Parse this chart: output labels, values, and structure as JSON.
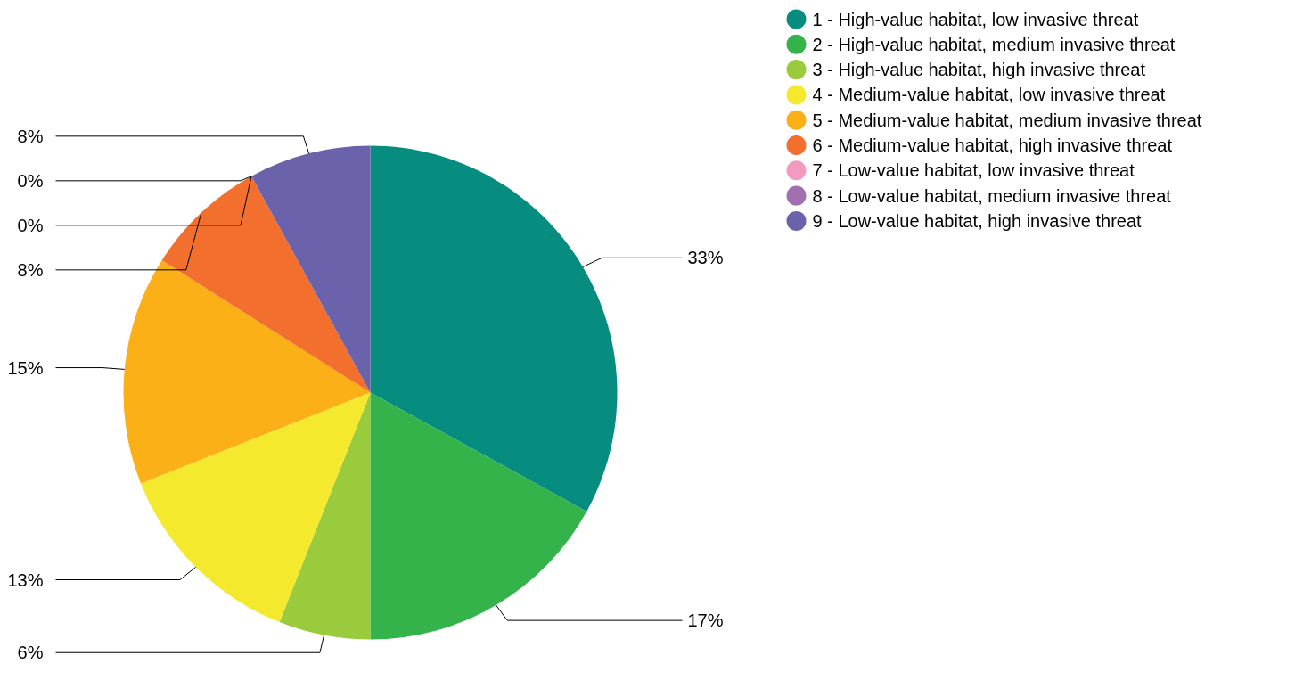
{
  "chart_data": {
    "type": "pie",
    "categories": [
      "1 - High-value habitat, low invasive threat",
      "2 - High-value habitat, medium invasive threat",
      "3 - High-value habitat, high invasive threat",
      "4 - Medium-value habitat, low invasive threat",
      "5 - Medium-value habitat, medium invasive threat",
      "6 - Medium-value habitat, high invasive threat",
      "7 - Low-value habitat, low invasive threat",
      "8 - Low-value habitat, medium invasive threat",
      "9 - Low-value habitat, high invasive threat"
    ],
    "values": [
      33,
      17,
      6,
      13,
      15,
      8,
      0,
      0,
      8
    ],
    "colors": [
      "#078d80",
      "#33b34a",
      "#9acb3c",
      "#f5e92e",
      "#fbb018",
      "#f26f2e",
      "#f49ac1",
      "#a070b0",
      "#6a62ab"
    ],
    "value_labels": [
      "33%",
      "17%",
      "6%",
      "13%",
      "15%",
      "8%",
      "0%",
      "0%",
      "8%"
    ],
    "legend": "top right"
  }
}
